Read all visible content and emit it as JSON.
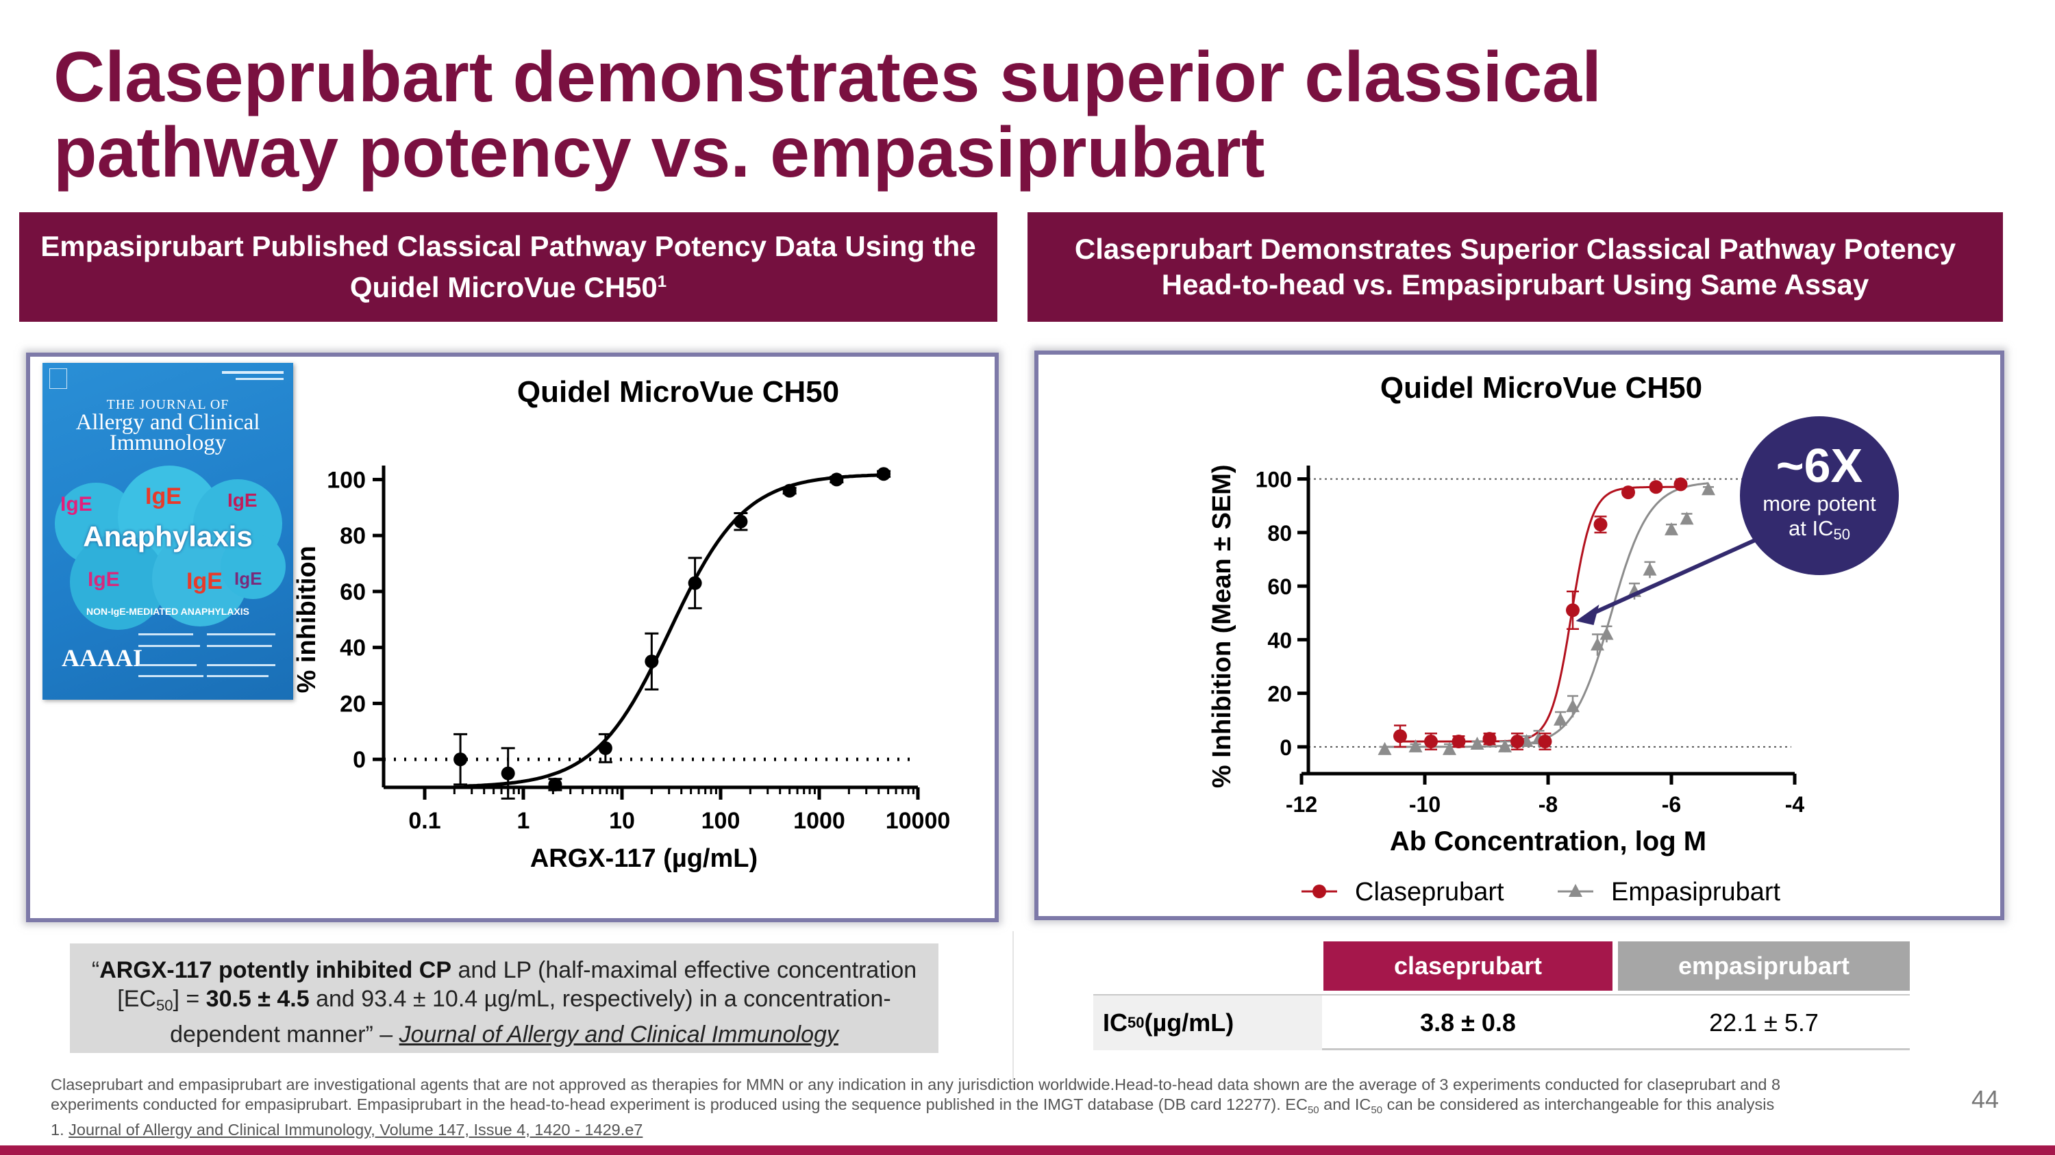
{
  "slide": {
    "title": "Claseprubart demonstrates superior classical pathway potency vs. empasiprubart",
    "page_number": "44"
  },
  "left_panel": {
    "header": "Empasiprubart Published Classical Pathway Potency Data Using the Quidel MicroVue CH50",
    "header_sup": "1",
    "cover": {
      "journal_line": "THE JOURNAL OF",
      "journal_name": "Allergy and Clinical Immunology",
      "headline": "Anaphylaxis",
      "subline": "NON-IgE-MEDIATED ANAPHYLAXIS",
      "society": "AAAAI"
    },
    "quote": {
      "open": "“",
      "bold1": "ARGX-117 potently inhibited CP",
      "text1": " and LP (half-maximal effective concentration [EC",
      "sub": "50",
      "text2": "] = ",
      "bold2": "30.5 ± 4.5",
      "text3": " and 93.4 ± 10.4 µg/mL, respectively) in a concentration-dependent manner” – ",
      "source": "Journal of Allergy and Clinical Immunology"
    }
  },
  "right_panel": {
    "header": "Claseprubart Demonstrates Superior Classical Pathway Potency Head-to-head vs. Empasiprubart Using Same Assay",
    "callout": {
      "big": "~6X",
      "line1": "more potent",
      "line2": "at IC",
      "sub": "50"
    },
    "table": {
      "col1": "claseprubart",
      "col2": "empasiprubart",
      "row_label": "IC",
      "row_label_sub": "50",
      "row_label_unit": " (µg/mL)",
      "val1": "3.8 ± 0.8",
      "val2": "22.1 ± 5.7"
    }
  },
  "footnote": {
    "line1": "Claseprubart and empasiprubart are investigational agents that are not approved as therapies for MMN or any indication in any jurisdiction worldwide.Head-to-head data shown are the average of 3 experiments conducted for claseprubart and 8",
    "line2a": "experiments conducted for empasiprubart. Empasiprubart in the head-to-head experiment is produced using the sequence published in the IMGT database (DB card 12277). EC",
    "line2sub1": "50",
    "line2b": " and IC",
    "line2sub2": "50",
    "line2c": " can be considered as interchangeable for this analysis",
    "line3a": "1. ",
    "line3ref": "Journal of Allergy and Clinical Immunology, Volume 147, Issue 4, 1420 - 1429.e7"
  },
  "colors": {
    "brand": "#75103f",
    "claseprubart": "#b3111e",
    "empasiprubart": "#8c8c8c",
    "callout": "#332a6e"
  },
  "chart_data": [
    {
      "type": "scatter",
      "title": "Quidel MicroVue CH50",
      "xlabel": "ARGX-117 (µg/mL)",
      "ylabel": "% inhibition",
      "xscale": "log",
      "xlim": [
        0.1,
        10000
      ],
      "ylim": [
        -10,
        105
      ],
      "xticks": [
        "0.1",
        "1",
        "10",
        "100",
        "1000",
        "10000"
      ],
      "yticks": [
        "0",
        "20",
        "40",
        "60",
        "80",
        "100"
      ],
      "series": [
        {
          "x": [
            0.23,
            0.7,
            2.1,
            6.8,
            20,
            55,
            160,
            500,
            1500,
            4500
          ],
          "y": [
            0,
            -5,
            -9,
            4,
            35,
            63,
            85,
            96,
            100,
            102
          ],
          "err": [
            9,
            9,
            2,
            5,
            10,
            9,
            3,
            1,
            1,
            1
          ]
        }
      ],
      "fit": "sigmoid",
      "legend": "none"
    },
    {
      "type": "scatter",
      "title": "Quidel MicroVue CH50",
      "xlabel": "Ab Concentration, log M",
      "ylabel": "% Inhibition (Mean ± SEM)",
      "xlim": [
        -12,
        -4
      ],
      "ylim": [
        -10,
        105
      ],
      "xticks": [
        "-12",
        "-10",
        "-8",
        "-6",
        "-4"
      ],
      "yticks": [
        "0",
        "20",
        "40",
        "60",
        "80",
        "100"
      ],
      "legend": "bottom",
      "series": [
        {
          "name": "Claseprubart",
          "x": [
            -10.4,
            -9.9,
            -9.45,
            -8.95,
            -8.5,
            -8.05,
            -7.6,
            -7.15,
            -6.7,
            -6.25,
            -5.85
          ],
          "y": [
            4,
            2,
            2,
            3,
            2,
            2,
            51,
            83,
            95,
            97,
            98
          ],
          "err": [
            4,
            3,
            2,
            2,
            3,
            3,
            7,
            3,
            1,
            1,
            1
          ]
        },
        {
          "name": "Empasiprubart",
          "x": [
            -10.65,
            -10.15,
            -9.6,
            -9.15,
            -8.7,
            -8.35,
            -8.15,
            -7.8,
            -7.6,
            -7.2,
            -7.05,
            -6.6,
            -6.35,
            -6.0,
            -5.75,
            -5.4
          ],
          "y": [
            -1,
            0,
            -1,
            1,
            0,
            2,
            3,
            10,
            15,
            38,
            42,
            58,
            66,
            81,
            85,
            96
          ],
          "err": [
            1,
            1,
            2,
            1,
            2,
            2,
            3,
            3,
            4,
            4,
            3,
            3,
            3,
            2,
            2,
            1
          ]
        }
      ]
    }
  ]
}
